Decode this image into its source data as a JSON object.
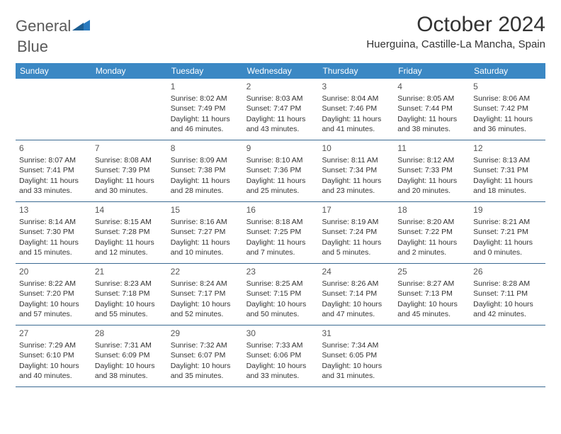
{
  "logo": {
    "text1": "General",
    "text2": "Blue"
  },
  "title": "October 2024",
  "location": "Huerguina, Castille-La Mancha, Spain",
  "colors": {
    "header_bg": "#3b88c4",
    "header_text": "#ffffff",
    "border": "#3b6a92",
    "logo_gray": "#5a5a5a",
    "logo_blue": "#2a7bbf",
    "text": "#333333"
  },
  "weekdays": [
    "Sunday",
    "Monday",
    "Tuesday",
    "Wednesday",
    "Thursday",
    "Friday",
    "Saturday"
  ],
  "weeks": [
    [
      {
        "n": "",
        "sunrise": "",
        "sunset": "",
        "daylight": ""
      },
      {
        "n": "",
        "sunrise": "",
        "sunset": "",
        "daylight": ""
      },
      {
        "n": "1",
        "sunrise": "Sunrise: 8:02 AM",
        "sunset": "Sunset: 7:49 PM",
        "daylight": "Daylight: 11 hours and 46 minutes."
      },
      {
        "n": "2",
        "sunrise": "Sunrise: 8:03 AM",
        "sunset": "Sunset: 7:47 PM",
        "daylight": "Daylight: 11 hours and 43 minutes."
      },
      {
        "n": "3",
        "sunrise": "Sunrise: 8:04 AM",
        "sunset": "Sunset: 7:46 PM",
        "daylight": "Daylight: 11 hours and 41 minutes."
      },
      {
        "n": "4",
        "sunrise": "Sunrise: 8:05 AM",
        "sunset": "Sunset: 7:44 PM",
        "daylight": "Daylight: 11 hours and 38 minutes."
      },
      {
        "n": "5",
        "sunrise": "Sunrise: 8:06 AM",
        "sunset": "Sunset: 7:42 PM",
        "daylight": "Daylight: 11 hours and 36 minutes."
      }
    ],
    [
      {
        "n": "6",
        "sunrise": "Sunrise: 8:07 AM",
        "sunset": "Sunset: 7:41 PM",
        "daylight": "Daylight: 11 hours and 33 minutes."
      },
      {
        "n": "7",
        "sunrise": "Sunrise: 8:08 AM",
        "sunset": "Sunset: 7:39 PM",
        "daylight": "Daylight: 11 hours and 30 minutes."
      },
      {
        "n": "8",
        "sunrise": "Sunrise: 8:09 AM",
        "sunset": "Sunset: 7:38 PM",
        "daylight": "Daylight: 11 hours and 28 minutes."
      },
      {
        "n": "9",
        "sunrise": "Sunrise: 8:10 AM",
        "sunset": "Sunset: 7:36 PM",
        "daylight": "Daylight: 11 hours and 25 minutes."
      },
      {
        "n": "10",
        "sunrise": "Sunrise: 8:11 AM",
        "sunset": "Sunset: 7:34 PM",
        "daylight": "Daylight: 11 hours and 23 minutes."
      },
      {
        "n": "11",
        "sunrise": "Sunrise: 8:12 AM",
        "sunset": "Sunset: 7:33 PM",
        "daylight": "Daylight: 11 hours and 20 minutes."
      },
      {
        "n": "12",
        "sunrise": "Sunrise: 8:13 AM",
        "sunset": "Sunset: 7:31 PM",
        "daylight": "Daylight: 11 hours and 18 minutes."
      }
    ],
    [
      {
        "n": "13",
        "sunrise": "Sunrise: 8:14 AM",
        "sunset": "Sunset: 7:30 PM",
        "daylight": "Daylight: 11 hours and 15 minutes."
      },
      {
        "n": "14",
        "sunrise": "Sunrise: 8:15 AM",
        "sunset": "Sunset: 7:28 PM",
        "daylight": "Daylight: 11 hours and 12 minutes."
      },
      {
        "n": "15",
        "sunrise": "Sunrise: 8:16 AM",
        "sunset": "Sunset: 7:27 PM",
        "daylight": "Daylight: 11 hours and 10 minutes."
      },
      {
        "n": "16",
        "sunrise": "Sunrise: 8:18 AM",
        "sunset": "Sunset: 7:25 PM",
        "daylight": "Daylight: 11 hours and 7 minutes."
      },
      {
        "n": "17",
        "sunrise": "Sunrise: 8:19 AM",
        "sunset": "Sunset: 7:24 PM",
        "daylight": "Daylight: 11 hours and 5 minutes."
      },
      {
        "n": "18",
        "sunrise": "Sunrise: 8:20 AM",
        "sunset": "Sunset: 7:22 PM",
        "daylight": "Daylight: 11 hours and 2 minutes."
      },
      {
        "n": "19",
        "sunrise": "Sunrise: 8:21 AM",
        "sunset": "Sunset: 7:21 PM",
        "daylight": "Daylight: 11 hours and 0 minutes."
      }
    ],
    [
      {
        "n": "20",
        "sunrise": "Sunrise: 8:22 AM",
        "sunset": "Sunset: 7:20 PM",
        "daylight": "Daylight: 10 hours and 57 minutes."
      },
      {
        "n": "21",
        "sunrise": "Sunrise: 8:23 AM",
        "sunset": "Sunset: 7:18 PM",
        "daylight": "Daylight: 10 hours and 55 minutes."
      },
      {
        "n": "22",
        "sunrise": "Sunrise: 8:24 AM",
        "sunset": "Sunset: 7:17 PM",
        "daylight": "Daylight: 10 hours and 52 minutes."
      },
      {
        "n": "23",
        "sunrise": "Sunrise: 8:25 AM",
        "sunset": "Sunset: 7:15 PM",
        "daylight": "Daylight: 10 hours and 50 minutes."
      },
      {
        "n": "24",
        "sunrise": "Sunrise: 8:26 AM",
        "sunset": "Sunset: 7:14 PM",
        "daylight": "Daylight: 10 hours and 47 minutes."
      },
      {
        "n": "25",
        "sunrise": "Sunrise: 8:27 AM",
        "sunset": "Sunset: 7:13 PM",
        "daylight": "Daylight: 10 hours and 45 minutes."
      },
      {
        "n": "26",
        "sunrise": "Sunrise: 8:28 AM",
        "sunset": "Sunset: 7:11 PM",
        "daylight": "Daylight: 10 hours and 42 minutes."
      }
    ],
    [
      {
        "n": "27",
        "sunrise": "Sunrise: 7:29 AM",
        "sunset": "Sunset: 6:10 PM",
        "daylight": "Daylight: 10 hours and 40 minutes."
      },
      {
        "n": "28",
        "sunrise": "Sunrise: 7:31 AM",
        "sunset": "Sunset: 6:09 PM",
        "daylight": "Daylight: 10 hours and 38 minutes."
      },
      {
        "n": "29",
        "sunrise": "Sunrise: 7:32 AM",
        "sunset": "Sunset: 6:07 PM",
        "daylight": "Daylight: 10 hours and 35 minutes."
      },
      {
        "n": "30",
        "sunrise": "Sunrise: 7:33 AM",
        "sunset": "Sunset: 6:06 PM",
        "daylight": "Daylight: 10 hours and 33 minutes."
      },
      {
        "n": "31",
        "sunrise": "Sunrise: 7:34 AM",
        "sunset": "Sunset: 6:05 PM",
        "daylight": "Daylight: 10 hours and 31 minutes."
      },
      {
        "n": "",
        "sunrise": "",
        "sunset": "",
        "daylight": ""
      },
      {
        "n": "",
        "sunrise": "",
        "sunset": "",
        "daylight": ""
      }
    ]
  ]
}
